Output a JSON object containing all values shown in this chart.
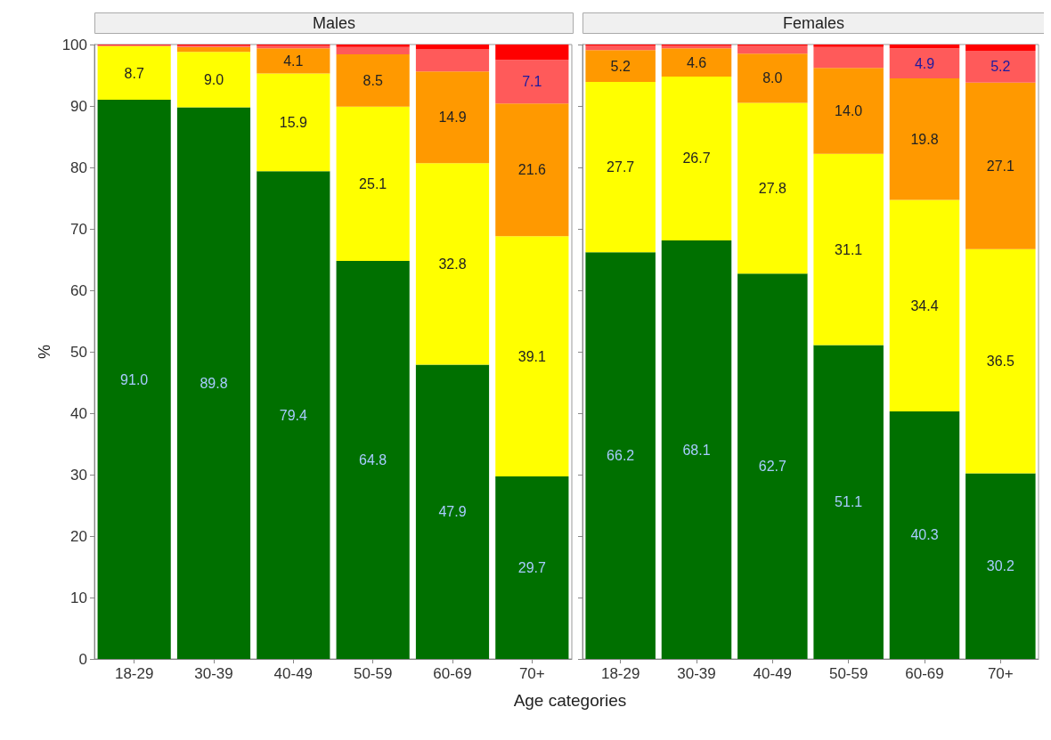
{
  "chart_data": [
    {
      "type": "bar",
      "title": "Males",
      "xlabel": "Age categories",
      "ylabel": "%",
      "stacked": true,
      "categories": [
        "18-29",
        "30-39",
        "40-49",
        "50-59",
        "60-69",
        "70+"
      ],
      "ylim": [
        0,
        100
      ],
      "yticks": [
        0,
        10,
        20,
        30,
        40,
        50,
        60,
        70,
        80,
        90,
        100
      ],
      "grid": false,
      "series": [
        {
          "color": "#007000",
          "values": [
            91.0,
            89.8,
            79.4,
            64.8,
            47.9,
            29.7
          ],
          "value_labels": [
            "91.0",
            "89.8",
            "79.4",
            "64.8",
            "47.9",
            "29.7"
          ]
        },
        {
          "color": "#ffff00",
          "values": [
            8.7,
            9.0,
            15.9,
            25.1,
            32.8,
            39.1
          ],
          "value_labels": [
            "8.7",
            "9.0",
            "15.9",
            "25.1",
            "32.8",
            "39.1"
          ]
        },
        {
          "color": "#ff9900",
          "values": [
            0.1,
            0.8,
            4.1,
            8.5,
            14.9,
            21.6
          ],
          "value_labels": [
            null,
            null,
            "4.1",
            "8.5",
            "14.9",
            "21.6"
          ]
        },
        {
          "color": "#ff5a5a",
          "values": [
            0.1,
            0.2,
            0.4,
            1.2,
            3.6,
            7.1
          ],
          "value_labels": [
            null,
            null,
            null,
            null,
            null,
            "7.1"
          ]
        },
        {
          "color": "#ff0000",
          "values": [
            0.1,
            0.2,
            0.2,
            0.4,
            0.8,
            2.5
          ],
          "value_labels": [
            null,
            null,
            null,
            null,
            null,
            null
          ]
        }
      ]
    },
    {
      "type": "bar",
      "title": "Females",
      "stacked": true,
      "tick_labels": "x",
      "categories": [
        "18-29",
        "30-39",
        "40-49",
        "50-59",
        "60-69",
        "70+"
      ],
      "ylim": [
        0,
        100
      ],
      "yticks": [
        0,
        10,
        20,
        30,
        40,
        50,
        60,
        70,
        80,
        90,
        100
      ],
      "grid": false,
      "series": [
        {
          "color": "#007000",
          "values": [
            66.2,
            68.1,
            62.7,
            51.1,
            40.3,
            30.2
          ],
          "value_labels": [
            "66.2",
            "68.1",
            "62.7",
            "51.1",
            "40.3",
            "30.2"
          ]
        },
        {
          "color": "#ffff00",
          "values": [
            27.7,
            26.7,
            27.8,
            31.1,
            34.4,
            36.5
          ],
          "value_labels": [
            "27.7",
            "26.7",
            "27.8",
            "31.1",
            "34.4",
            "36.5"
          ]
        },
        {
          "color": "#ff9900",
          "values": [
            5.2,
            4.6,
            8.0,
            14.0,
            19.8,
            27.1
          ],
          "value_labels": [
            "5.2",
            "4.6",
            "8.0",
            "14.0",
            "19.8",
            "27.1"
          ]
        },
        {
          "color": "#ff5a5a",
          "values": [
            0.7,
            0.4,
            1.3,
            3.4,
            4.9,
            5.2
          ],
          "value_labels": [
            null,
            null,
            null,
            null,
            "4.9",
            "5.2"
          ]
        },
        {
          "color": "#ff0000",
          "values": [
            0.2,
            0.2,
            0.2,
            0.4,
            0.6,
            1.0
          ],
          "value_labels": [
            null,
            null,
            null,
            null,
            null,
            null
          ]
        }
      ]
    }
  ]
}
